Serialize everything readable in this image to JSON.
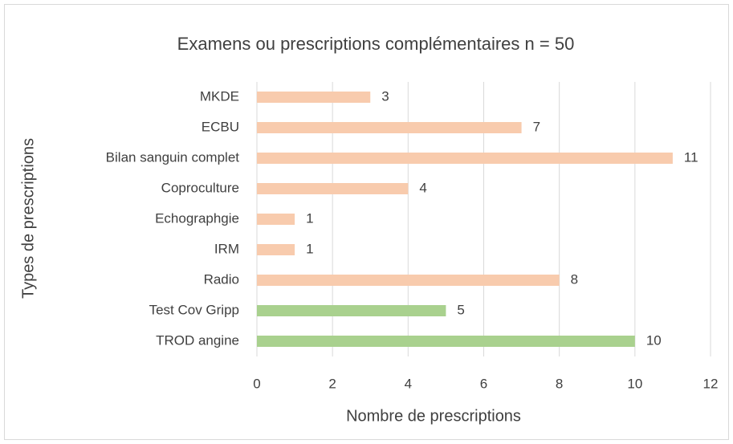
{
  "chart_data": {
    "type": "bar",
    "orientation": "horizontal",
    "title": "Examens ou prescriptions complémentaires n = 50",
    "xlabel": "Nombre de prescriptions",
    "ylabel": "Types de prescriptions",
    "categories": [
      "MKDE",
      "ECBU",
      "Bilan sanguin complet",
      "Coproculture",
      "Echographgie",
      "IRM",
      "Radio",
      "Test Cov Gripp",
      "TROD angine"
    ],
    "values": [
      3,
      7,
      11,
      4,
      1,
      1,
      8,
      5,
      10
    ],
    "colors": [
      "#f8cbad",
      "#f8cbad",
      "#f8cbad",
      "#f8cbad",
      "#f8cbad",
      "#f8cbad",
      "#f8cbad",
      "#a9d18e",
      "#a9d18e"
    ],
    "xlim": [
      0,
      12
    ],
    "xticks": [
      0,
      2,
      4,
      6,
      8,
      10,
      12
    ],
    "grid": true
  }
}
